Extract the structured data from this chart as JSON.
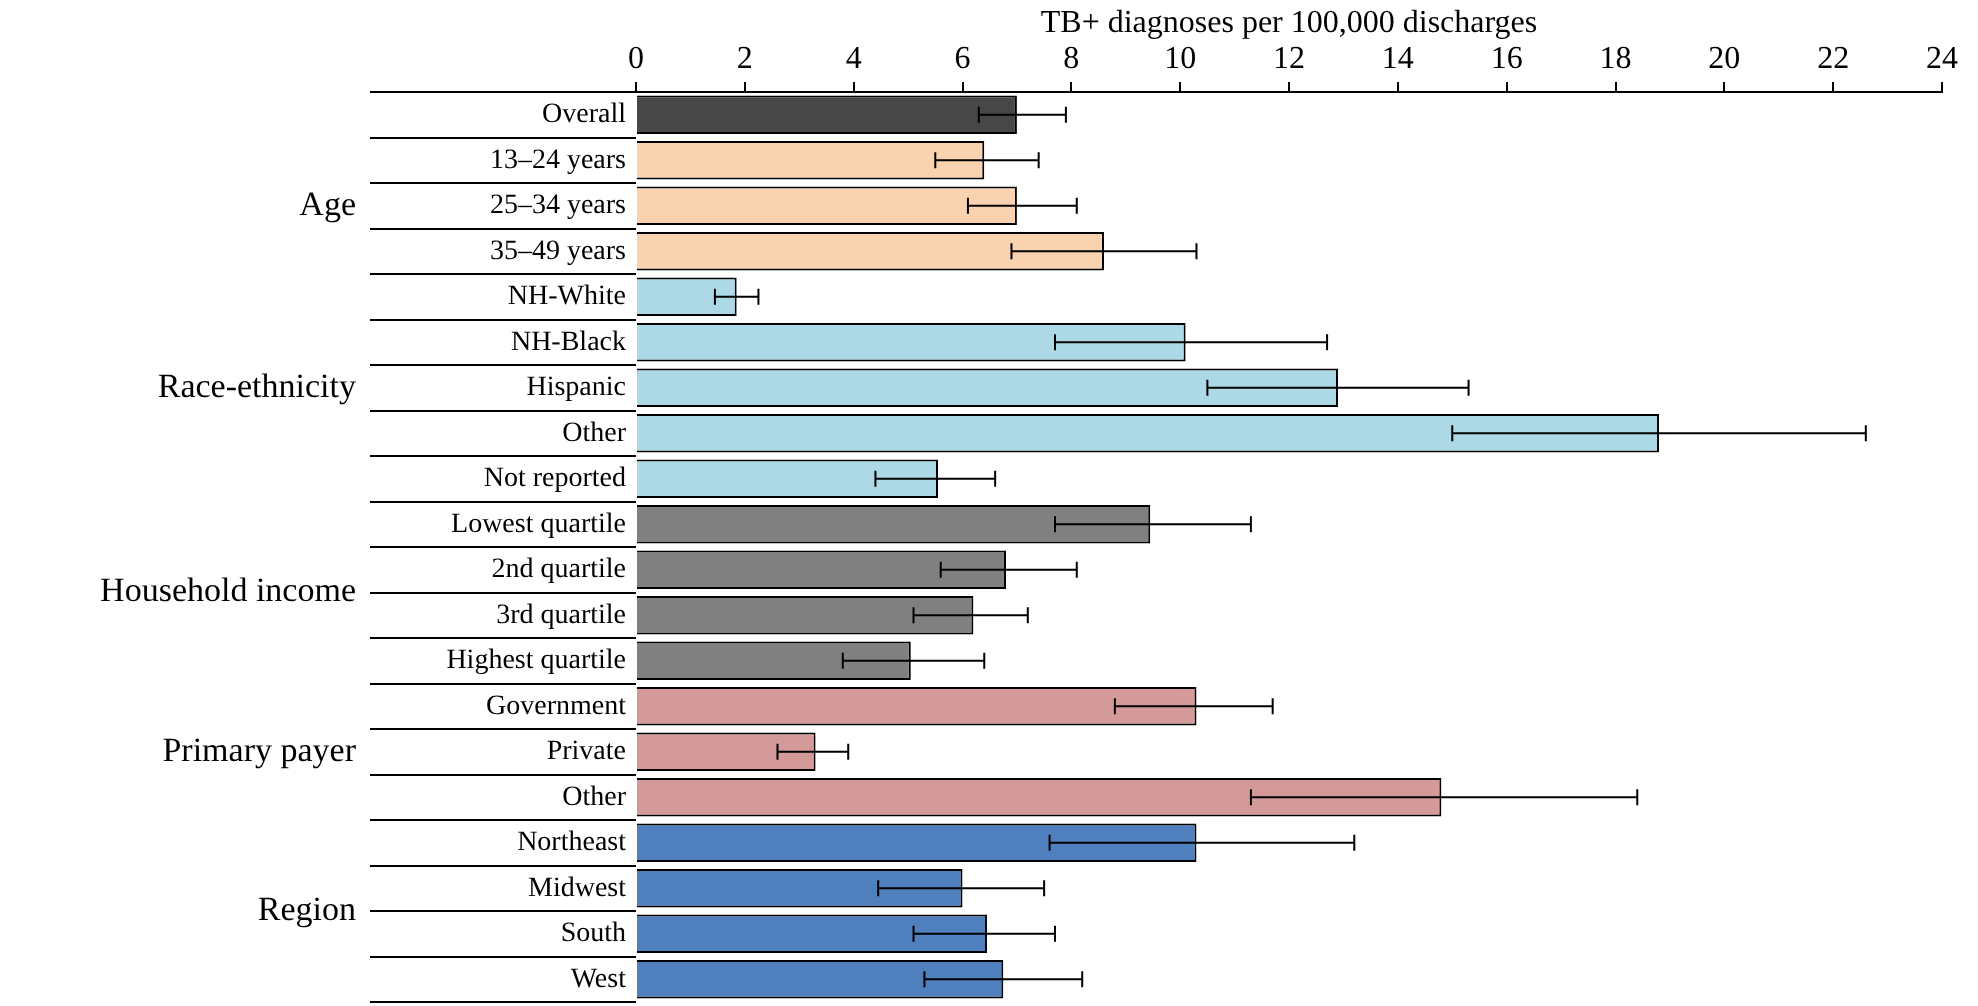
{
  "chart_data": {
    "type": "bar",
    "orientation": "horizontal",
    "xlabel": "TB+ diagnoses per 100,000 discharges",
    "categories": [
      "Overall",
      "13–24 years",
      "25–34 years",
      "35–49 years",
      "NH-White",
      "NH-Black",
      "Hispanic",
      "Other",
      "Not reported",
      "Lowest quartile",
      "2nd quartile",
      "3rd quartile",
      "Highest quartile",
      "Government",
      "Private",
      "Other",
      "Northeast",
      "Midwest",
      "South",
      "West"
    ],
    "values": [
      7.0,
      6.4,
      7.0,
      8.6,
      1.85,
      10.1,
      12.9,
      18.8,
      5.55,
      9.45,
      6.8,
      6.2,
      5.05,
      10.3,
      3.3,
      14.8,
      10.3,
      6.0,
      6.45,
      6.75
    ],
    "errors": [
      [
        6.3,
        7.9
      ],
      [
        5.5,
        7.4
      ],
      [
        6.1,
        8.1
      ],
      [
        6.9,
        10.3
      ],
      [
        1.45,
        2.25
      ],
      [
        7.7,
        12.7
      ],
      [
        10.5,
        15.3
      ],
      [
        15.0,
        22.6
      ],
      [
        4.4,
        6.6
      ],
      [
        7.7,
        11.3
      ],
      [
        5.6,
        8.1
      ],
      [
        5.1,
        7.2
      ],
      [
        3.8,
        6.4
      ],
      [
        8.8,
        11.7
      ],
      [
        2.6,
        3.9
      ],
      [
        11.3,
        18.4
      ],
      [
        7.6,
        13.2
      ],
      [
        4.45,
        7.5
      ],
      [
        5.1,
        7.7
      ],
      [
        5.3,
        8.2
      ]
    ],
    "colors": [
      "#474747",
      "#f9d3b0",
      "#f9d3b0",
      "#f9d3b0",
      "#add8e6",
      "#add8e6",
      "#add8e6",
      "#add8e6",
      "#add8e6",
      "#808080",
      "#808080",
      "#808080",
      "#808080",
      "#d49a9a",
      "#d49a9a",
      "#d49a9a",
      "#4f7fbd",
      "#4f7fbd",
      "#4f7fbd",
      "#4f7fbd"
    ],
    "xlim": [
      0,
      24
    ],
    "xticks": [
      0,
      2,
      4,
      6,
      8,
      10,
      12,
      14,
      16,
      18,
      20,
      22,
      24
    ],
    "annotations": [
      "Age",
      "Race-ethnicity",
      "Household income",
      "Primary payer",
      "Region"
    ],
    "legend": false
  }
}
